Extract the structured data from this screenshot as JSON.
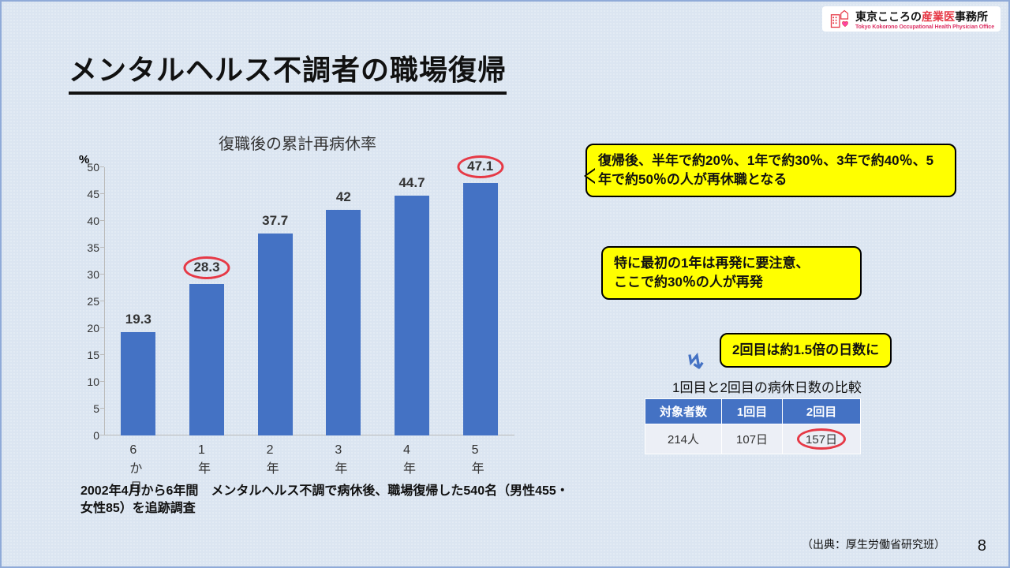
{
  "logo": {
    "main_pre": "東京こころの",
    "main_accent": "産業医",
    "main_post": "事務所",
    "sub": "Tokyo Kokorono Occupational Health Physician Office"
  },
  "title": "メンタルヘルス不調者の職場復帰",
  "chart": {
    "title": "復職後の累計再病休率",
    "y_unit": "%",
    "ylim": [
      0,
      50
    ],
    "ytick_step": 5,
    "bar_color": "#4472c4",
    "bg_color": "#dbe5f1",
    "categories": [
      "6か月",
      "1年",
      "2年",
      "3年",
      "4年",
      "5年"
    ],
    "values": [
      19.3,
      28.3,
      37.7,
      42,
      44.7,
      47.1
    ],
    "circled": [
      false,
      true,
      false,
      false,
      false,
      true
    ]
  },
  "chart_note": "2002年4月から6年間　メンタルヘルス不調で病休後、職場復帰した540名（男性455・女性85）を追跡調査",
  "callouts": {
    "c1": "復帰後、半年で約20％、1年で約30％、3年で約40％、5年で約50％の人が再休職となる",
    "c2": "特に最初の1年は再発に要注意、\nここで約30％の人が再発",
    "c3": "2回目は約1.5倍の日数に"
  },
  "table": {
    "title": "1回目と2回目の病休日数の比較",
    "headers": [
      "対象者数",
      "1回目",
      "2回目"
    ],
    "row": [
      "214人",
      "107日",
      "157日"
    ],
    "circled_col": 2
  },
  "source": "（出典：厚生労働省研究班）",
  "pagenum": "8"
}
